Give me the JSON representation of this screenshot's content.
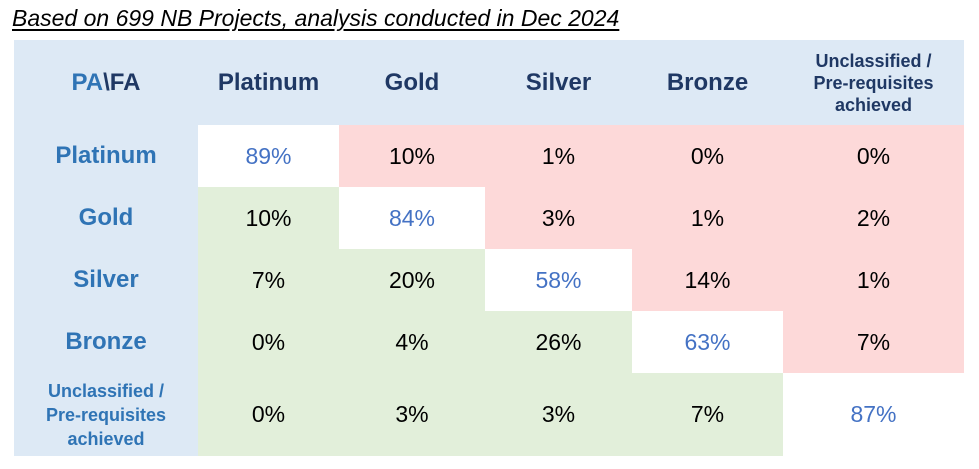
{
  "caption": "Based on 699 NB Projects, analysis conducted in Dec 2024",
  "corner": {
    "pa": "PA",
    "sep": " \\ ",
    "fa": "FA"
  },
  "columns": [
    "Platinum",
    "Gold",
    "Silver",
    "Bronze",
    "Unclassified / Pre-requisites achieved"
  ],
  "rows": [
    {
      "label": "Platinum",
      "values": [
        "89%",
        "10%",
        "1%",
        "0%",
        "0%"
      ]
    },
    {
      "label": "Gold",
      "values": [
        "10%",
        "84%",
        "3%",
        "1%",
        "2%"
      ]
    },
    {
      "label": "Silver",
      "values": [
        "7%",
        "20%",
        "58%",
        "14%",
        "1%"
      ]
    },
    {
      "label": "Bronze",
      "values": [
        "0%",
        "4%",
        "26%",
        "63%",
        "7%"
      ]
    },
    {
      "label": "Unclassified / Pre-requisites achieved",
      "values": [
        "0%",
        "3%",
        "3%",
        "7%",
        "87%"
      ]
    }
  ],
  "colors": {
    "header_bg": "#dde9f5",
    "row_label": "#2f74b5",
    "col_label": "#1f3864",
    "diagonal_text": "#4472c4",
    "above_diagonal_bg": "#fdd9d9",
    "below_diagonal_bg": "#e2efda",
    "diagonal_bg": "#ffffff"
  }
}
